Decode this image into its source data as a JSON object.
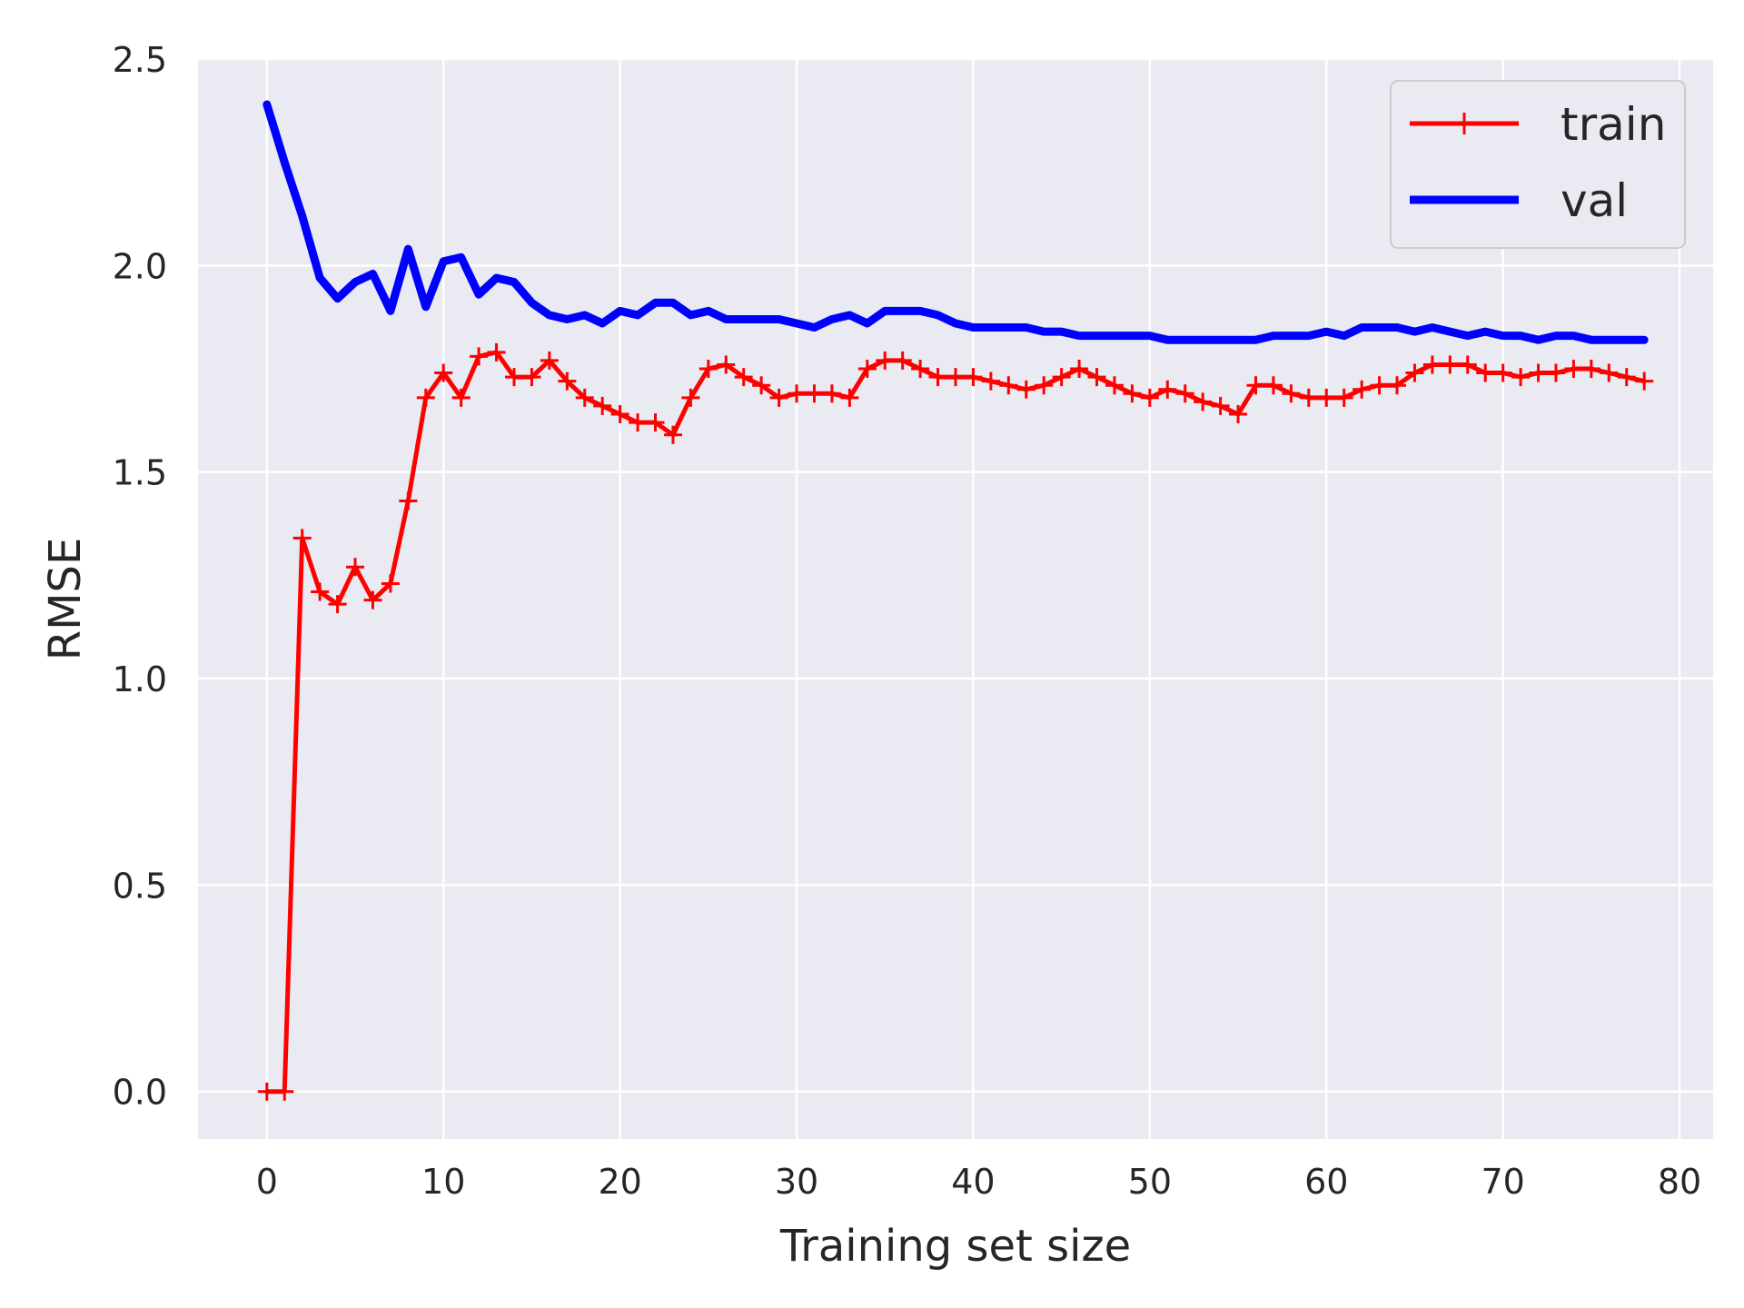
{
  "chart_data": {
    "type": "line",
    "title": "",
    "xlabel": "Training set size",
    "ylabel": "RMSE",
    "xlim": [
      -3.9,
      81.9
    ],
    "ylim": [
      -0.115,
      2.5
    ],
    "xticks": [
      0,
      10,
      20,
      30,
      40,
      50,
      60,
      70,
      80
    ],
    "xtick_labels": [
      "0",
      "10",
      "20",
      "30",
      "40",
      "50",
      "60",
      "70",
      "80"
    ],
    "yticks": [
      0.0,
      0.5,
      1.0,
      1.5,
      2.0,
      2.5
    ],
    "ytick_labels": [
      "0.0",
      "0.5",
      "1.0",
      "1.5",
      "2.0",
      "2.5"
    ],
    "grid": true,
    "legend": {
      "position": "top-right"
    },
    "colors": {
      "background": "#eaeaf2",
      "grid": "#ffffff",
      "train": "#ff0000",
      "val": "#0000ff"
    },
    "x": [
      0,
      1,
      2,
      3,
      4,
      5,
      6,
      7,
      8,
      9,
      10,
      11,
      12,
      13,
      14,
      15,
      16,
      17,
      18,
      19,
      20,
      21,
      22,
      23,
      24,
      25,
      26,
      27,
      28,
      29,
      30,
      31,
      32,
      33,
      34,
      35,
      36,
      37,
      38,
      39,
      40,
      41,
      42,
      43,
      44,
      45,
      46,
      47,
      48,
      49,
      50,
      51,
      52,
      53,
      54,
      55,
      56,
      57,
      58,
      59,
      60,
      61,
      62,
      63,
      64,
      65,
      66,
      67,
      68,
      69,
      70,
      71,
      72,
      73,
      74,
      75,
      76,
      77,
      78
    ],
    "series": [
      {
        "name": "train",
        "marker": "+",
        "values": [
          0.0,
          0.0,
          1.34,
          1.21,
          1.18,
          1.27,
          1.19,
          1.23,
          1.43,
          1.68,
          1.74,
          1.68,
          1.78,
          1.79,
          1.73,
          1.73,
          1.77,
          1.72,
          1.68,
          1.66,
          1.64,
          1.62,
          1.62,
          1.59,
          1.68,
          1.75,
          1.76,
          1.73,
          1.71,
          1.68,
          1.69,
          1.69,
          1.69,
          1.68,
          1.75,
          1.77,
          1.77,
          1.75,
          1.73,
          1.73,
          1.73,
          1.72,
          1.71,
          1.7,
          1.71,
          1.73,
          1.75,
          1.73,
          1.71,
          1.69,
          1.68,
          1.7,
          1.69,
          1.67,
          1.66,
          1.64,
          1.71,
          1.71,
          1.69,
          1.68,
          1.68,
          1.68,
          1.7,
          1.71,
          1.71,
          1.74,
          1.76,
          1.76,
          1.76,
          1.74,
          1.74,
          1.73,
          1.74,
          1.74,
          1.75,
          1.75,
          1.74,
          1.73,
          1.72
        ]
      },
      {
        "name": "val",
        "marker": "",
        "values": [
          2.39,
          2.25,
          2.12,
          1.97,
          1.92,
          1.96,
          1.98,
          1.89,
          2.04,
          1.9,
          2.01,
          2.02,
          1.93,
          1.97,
          1.96,
          1.91,
          1.88,
          1.87,
          1.88,
          1.86,
          1.89,
          1.88,
          1.91,
          1.91,
          1.88,
          1.89,
          1.87,
          1.87,
          1.87,
          1.87,
          1.86,
          1.85,
          1.87,
          1.88,
          1.86,
          1.89,
          1.89,
          1.89,
          1.88,
          1.86,
          1.85,
          1.85,
          1.85,
          1.85,
          1.84,
          1.84,
          1.83,
          1.83,
          1.83,
          1.83,
          1.83,
          1.82,
          1.82,
          1.82,
          1.82,
          1.82,
          1.82,
          1.83,
          1.83,
          1.83,
          1.84,
          1.83,
          1.85,
          1.85,
          1.85,
          1.84,
          1.85,
          1.84,
          1.83,
          1.84,
          1.83,
          1.83,
          1.82,
          1.83,
          1.83,
          1.82,
          1.82,
          1.82,
          1.82
        ]
      }
    ]
  }
}
